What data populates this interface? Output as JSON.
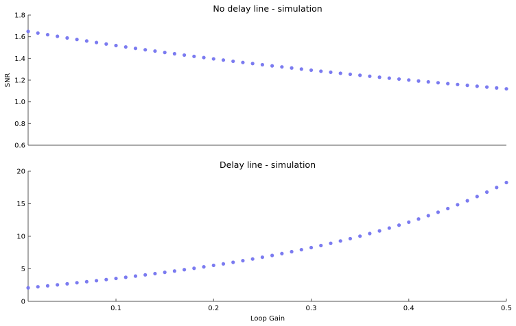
{
  "chart_data": [
    {
      "type": "scatter",
      "title": "No delay line - simulation",
      "xlabel": "",
      "ylabel": "SNR",
      "xlim": [
        0.01,
        0.5
      ],
      "ylim": [
        0.6,
        1.8
      ],
      "yticks": [
        0.6,
        0.8,
        1.0,
        1.2,
        1.4,
        1.6,
        1.8
      ],
      "ytick_labels": [
        "0.6",
        "0.8",
        "1.0",
        "1.2",
        "1.4",
        "1.6",
        "1.8"
      ],
      "xticks": [],
      "xtick_labels": [],
      "marker_color": "#7b7bf0",
      "grid": false,
      "x": [
        0.01,
        0.02,
        0.03,
        0.04,
        0.05,
        0.06,
        0.07,
        0.08,
        0.09,
        0.1,
        0.11,
        0.12,
        0.13,
        0.14,
        0.15,
        0.16,
        0.17,
        0.18,
        0.19,
        0.2,
        0.21,
        0.22,
        0.23,
        0.24,
        0.25,
        0.26,
        0.27,
        0.28,
        0.29,
        0.3,
        0.31,
        0.32,
        0.33,
        0.34,
        0.35,
        0.36,
        0.37,
        0.38,
        0.39,
        0.4,
        0.41,
        0.42,
        0.43,
        0.44,
        0.45,
        0.46,
        0.47,
        0.48,
        0.49,
        0.5
      ],
      "y": [
        1.649,
        1.634,
        1.619,
        1.604,
        1.589,
        1.575,
        1.561,
        1.547,
        1.533,
        1.519,
        1.506,
        1.493,
        1.48,
        1.468,
        1.455,
        1.443,
        1.431,
        1.419,
        1.408,
        1.396,
        1.385,
        1.374,
        1.363,
        1.353,
        1.342,
        1.332,
        1.322,
        1.312,
        1.302,
        1.292,
        1.282,
        1.273,
        1.263,
        1.254,
        1.245,
        1.236,
        1.227,
        1.218,
        1.21,
        1.201,
        1.192,
        1.184,
        1.176,
        1.168,
        1.16,
        1.152,
        1.144,
        1.136,
        1.128,
        1.12
      ]
    },
    {
      "type": "scatter",
      "title": "Delay line - simulation",
      "xlabel": "Loop Gain",
      "ylabel": "",
      "xlim": [
        0.01,
        0.5
      ],
      "ylim": [
        0,
        20
      ],
      "yticks": [
        0,
        5,
        10,
        15,
        20
      ],
      "ytick_labels": [
        "0",
        "5",
        "10",
        "15",
        "20"
      ],
      "xticks": [
        0.1,
        0.2,
        0.3,
        0.4,
        0.5
      ],
      "xtick_labels": [
        "0.1",
        "0.2",
        "0.3",
        "0.4",
        "0.5"
      ],
      "marker_color": "#7b7bf0",
      "grid": false,
      "x": [
        0.01,
        0.02,
        0.03,
        0.04,
        0.05,
        0.06,
        0.07,
        0.08,
        0.09,
        0.1,
        0.11,
        0.12,
        0.13,
        0.14,
        0.15,
        0.16,
        0.17,
        0.18,
        0.19,
        0.2,
        0.21,
        0.22,
        0.23,
        0.24,
        0.25,
        0.26,
        0.27,
        0.28,
        0.29,
        0.3,
        0.31,
        0.32,
        0.33,
        0.34,
        0.35,
        0.36,
        0.37,
        0.38,
        0.39,
        0.4,
        0.41,
        0.42,
        0.43,
        0.44,
        0.45,
        0.46,
        0.47,
        0.48,
        0.49,
        0.5
      ],
      "y": [
        2.08,
        2.24,
        2.39,
        2.54,
        2.7,
        2.86,
        3.02,
        3.18,
        3.35,
        3.52,
        3.7,
        3.88,
        4.07,
        4.26,
        4.46,
        4.66,
        4.87,
        5.08,
        5.3,
        5.53,
        5.76,
        6.0,
        6.25,
        6.51,
        6.78,
        7.05,
        7.34,
        7.63,
        7.94,
        8.26,
        8.58,
        8.92,
        9.28,
        9.64,
        10.02,
        10.42,
        10.83,
        11.26,
        11.71,
        12.17,
        12.66,
        13.17,
        13.7,
        14.26,
        14.85,
        15.46,
        16.11,
        16.79,
        17.5,
        18.26
      ]
    }
  ]
}
